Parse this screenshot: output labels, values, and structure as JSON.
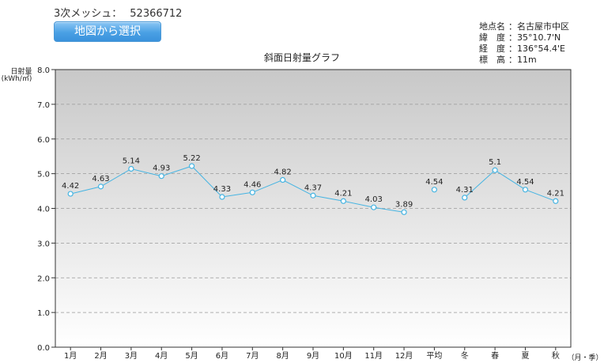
{
  "header": {
    "mesh_label": "3次メッシュ：",
    "mesh_code": "52366712",
    "map_button_label": "地図から選択"
  },
  "location": {
    "rows": [
      {
        "label": "地点名",
        "value": "：名古屋市中区"
      },
      {
        "label": "緯　度",
        "value": "：35°10.7'N"
      },
      {
        "label": "経　度",
        "value": "：136°54.4'E"
      },
      {
        "label": "標　高",
        "value": "：11m"
      }
    ]
  },
  "chart_data": {
    "type": "line",
    "title": "斜面日射量グラフ",
    "ylabel": [
      "日射量",
      "(kWh/㎡)"
    ],
    "xlabel": "（月・季）",
    "ylim": [
      0,
      8
    ],
    "yticks": [
      "0.0",
      "1.0",
      "2.0",
      "3.0",
      "4.0",
      "5.0",
      "6.0",
      "7.0",
      "8.0"
    ],
    "categories": [
      "1月",
      "2月",
      "3月",
      "4月",
      "5月",
      "6月",
      "7月",
      "8月",
      "9月",
      "10月",
      "11月",
      "12月",
      "平均",
      "冬",
      "春",
      "夏",
      "秋"
    ],
    "values": [
      4.42,
      4.63,
      5.14,
      4.93,
      5.22,
      4.33,
      4.46,
      4.82,
      4.37,
      4.21,
      4.03,
      3.89,
      4.54,
      4.31,
      5.1,
      4.54,
      4.21
    ],
    "value_labels": [
      "4.42",
      "4.63",
      "5.14",
      "4.93",
      "5.22",
      "4.33",
      "4.46",
      "4.82",
      "4.37",
      "4.21",
      "4.03",
      "3.89",
      "4.54",
      "4.31",
      "5.1",
      "4.54",
      "4.21"
    ],
    "line_segments": [
      [
        0,
        11
      ],
      [
        13,
        16
      ]
    ],
    "grid": true,
    "colors": {
      "line": "#45b4e2",
      "plot_top": "#c8c8c8",
      "plot_bottom": "#ffffff",
      "grid": "#9a9a9a"
    }
  }
}
